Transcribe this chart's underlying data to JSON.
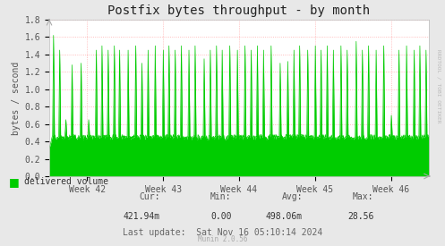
{
  "title": "Postfix bytes throughput - by month",
  "ylabel": "bytes / second",
  "bg_color": "#e8e8e8",
  "plot_bg_color": "#ffffff",
  "grid_color": "#ffaaaa",
  "line_color": "#00cc00",
  "fill_color": "#00cc00",
  "ylim": [
    0.0,
    1.8
  ],
  "yticks": [
    0.0,
    0.2,
    0.4,
    0.6,
    0.8,
    1.0,
    1.2,
    1.4,
    1.6,
    1.8
  ],
  "xtick_labels": [
    "Week 42",
    "Week 43",
    "Week 44",
    "Week 45",
    "Week 46"
  ],
  "legend_label": "delivered volume",
  "cur_label": "Cur:",
  "cur_val": "421.94m",
  "min_label": "Min:",
  "min_val": "0.00",
  "avg_label": "Avg:",
  "avg_val": "498.06m",
  "max_label": "Max:",
  "max_val": "28.56",
  "last_update": "Last update:  Sat Nov 16 05:10:14 2024",
  "munin_version": "Munin 2.0.56",
  "rrdtool_label": "RRDTOOL / TOBI OETIKER",
  "title_fontsize": 10,
  "axis_fontsize": 7,
  "legend_fontsize": 7,
  "base_level": 0.45,
  "num_points": 800
}
